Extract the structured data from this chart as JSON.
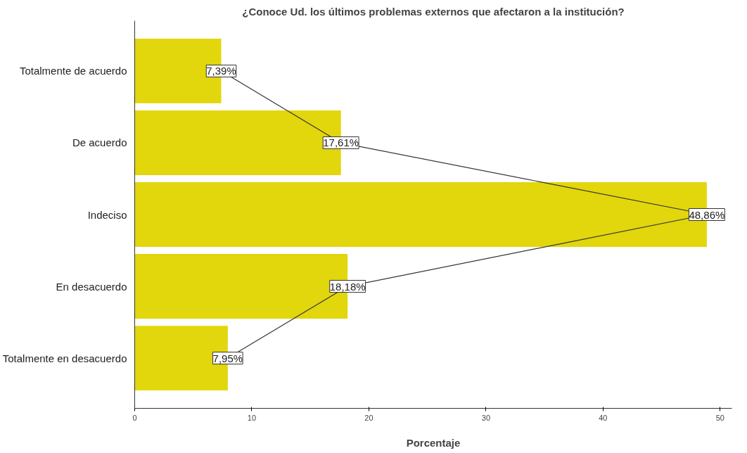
{
  "chart_data": {
    "type": "bar",
    "orientation": "horizontal",
    "title": "¿Conoce Ud. los últimos problemas externos que afectaron a la institución?",
    "xlabel": "Porcentaje",
    "categories": [
      "Totalmente de acuerdo",
      "De acuerdo",
      "Indeciso",
      "En desacuerdo",
      "Totalmente en desacuerdo"
    ],
    "series": [
      {
        "color": "#e2d60c",
        "values": [
          7.39,
          17.61,
          48.86,
          18.18,
          7.95
        ]
      },
      {
        "type": "line",
        "color": "#333333",
        "values": [
          7.39,
          17.61,
          48.86,
          18.18,
          7.95
        ],
        "value_labels": [
          "7,39%",
          "17,61%",
          "48,86%",
          "18,18%",
          "7,95%"
        ]
      }
    ],
    "xlim": [
      0,
      51
    ],
    "xticks": [
      0,
      10,
      20,
      30,
      40,
      50
    ],
    "grid": false
  }
}
